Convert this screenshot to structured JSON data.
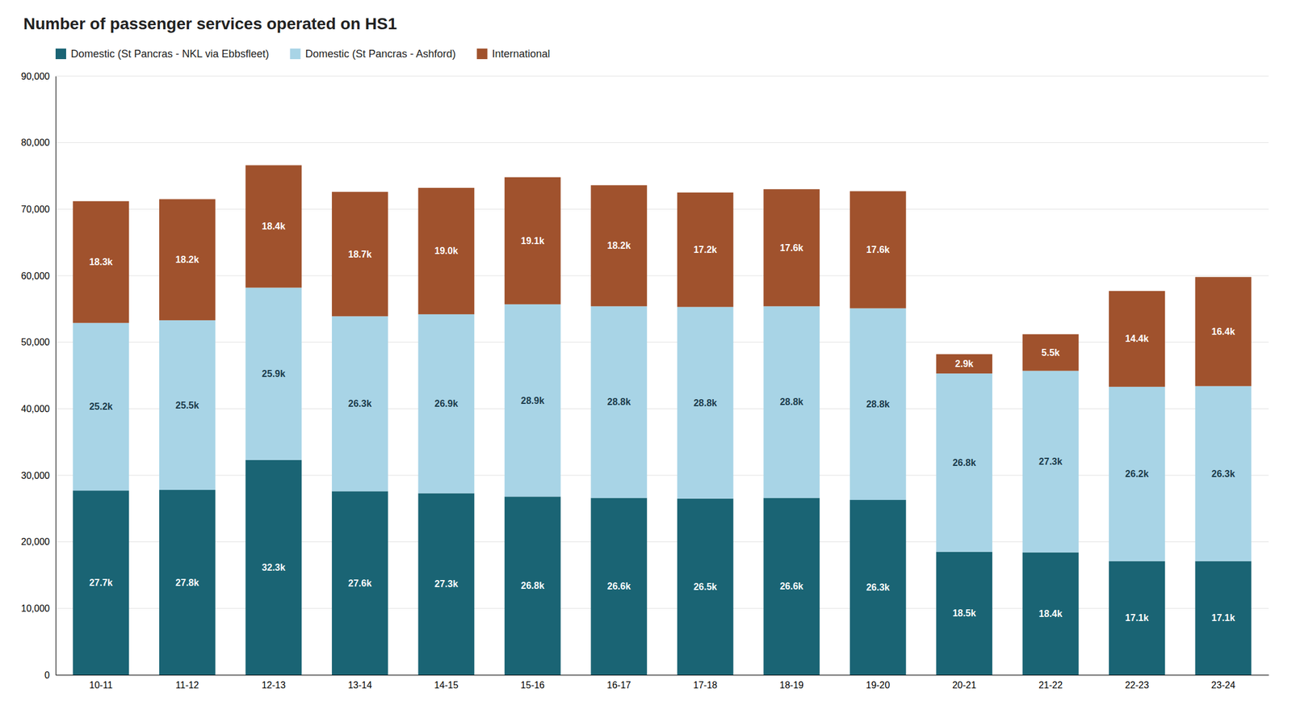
{
  "chart_data": {
    "type": "bar",
    "title": "Number of passenger services operated on HS1",
    "categories": [
      "10-11",
      "11-12",
      "12-13",
      "13-14",
      "14-15",
      "15-16",
      "16-17",
      "17-18",
      "18-19",
      "19-20",
      "20-21",
      "21-22",
      "22-23",
      "23-24"
    ],
    "series": [
      {
        "name": "Domestic (St Pancras - NKL via Ebbsfleet)",
        "color": "#1a6474",
        "values": [
          27700,
          27800,
          32300,
          27600,
          27300,
          26800,
          26600,
          26500,
          26600,
          26300,
          18500,
          18400,
          17100,
          17100
        ],
        "value_labels": [
          "27.7k",
          "27.8k",
          "32.3k",
          "27.6k",
          "27.3k",
          "26.8k",
          "26.6k",
          "26.5k",
          "26.6k",
          "26.3k",
          "18.5k",
          "18.4k",
          "17.1k",
          "17.1k"
        ]
      },
      {
        "name": "Domestic (St Pancras - Ashford)",
        "color": "#a8d4e6",
        "values": [
          25200,
          25500,
          25900,
          26300,
          26900,
          28900,
          28800,
          28800,
          28800,
          28800,
          26800,
          27300,
          26200,
          26300
        ],
        "value_labels": [
          "25.2k",
          "25.5k",
          "25.9k",
          "26.3k",
          "26.9k",
          "28.9k",
          "28.8k",
          "28.8k",
          "28.8k",
          "28.8k",
          "26.8k",
          "27.3k",
          "26.2k",
          "26.3k"
        ]
      },
      {
        "name": "International",
        "color": "#a0522d",
        "values": [
          18300,
          18200,
          18400,
          18700,
          19000,
          19100,
          18200,
          17200,
          17600,
          17600,
          2900,
          5500,
          14400,
          16400
        ],
        "value_labels": [
          "18.3k",
          "18.2k",
          "18.4k",
          "18.7k",
          "19.0k",
          "19.1k",
          "18.2k",
          "17.2k",
          "17.6k",
          "17.6k",
          "2.9k",
          "5.5k",
          "14.4k",
          "16.4k"
        ]
      }
    ],
    "stacked": true,
    "data_labels": true,
    "ylim": [
      0,
      90000
    ],
    "yticks": [
      0,
      {
        "value": 10000,
        "label": "10,000"
      },
      {
        "value": 20000,
        "label": "20,000"
      },
      {
        "value": 30000,
        "label": "30,000"
      },
      {
        "value": 40000,
        "label": "40,000"
      },
      {
        "value": 50000,
        "label": "50,000"
      },
      {
        "value": 60000,
        "label": "60,000"
      },
      {
        "value": 70000,
        "label": "70,000"
      },
      {
        "value": 80000,
        "label": "80,000"
      },
      {
        "value": 90000,
        "label": "90,000"
      }
    ],
    "grid": true,
    "legend": "top-left"
  }
}
